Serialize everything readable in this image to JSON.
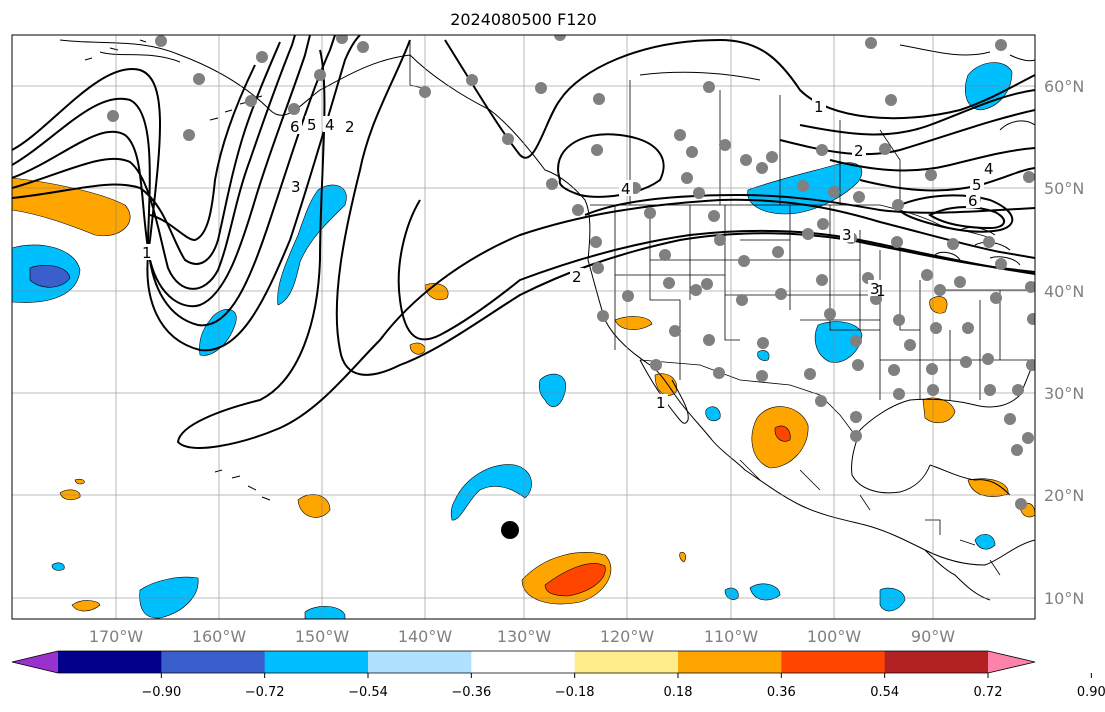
{
  "title": "2024080500 F120",
  "map": {
    "lon_ticks": [
      "170°W",
      "160°W",
      "150°W",
      "140°W",
      "130°W",
      "120°W",
      "110°W",
      "100°W",
      "90°W"
    ],
    "lat_ticks": [
      "60°N",
      "50°N",
      "40°N",
      "30°N",
      "20°N",
      "10°N"
    ],
    "contour_labels": [
      "1",
      "2",
      "3",
      "4",
      "5",
      "6",
      "1",
      "2",
      "3",
      "4",
      "5",
      "6",
      "4",
      "2",
      "3",
      "1",
      "1"
    ],
    "grid": true
  },
  "colorbar": {
    "ticks": [
      "−0.90",
      "−0.72",
      "−0.54",
      "−0.36",
      "−0.18",
      "0.18",
      "0.36",
      "0.54",
      "0.72",
      "0.90"
    ],
    "colors": [
      "#9932cc",
      "#00008b",
      "#3a5fcd",
      "#00bfff",
      "#b0e2ff",
      "#ffffff",
      "#ffec8b",
      "#ffa500",
      "#ff4500",
      "#b22222",
      "#ff82ab"
    ]
  }
}
